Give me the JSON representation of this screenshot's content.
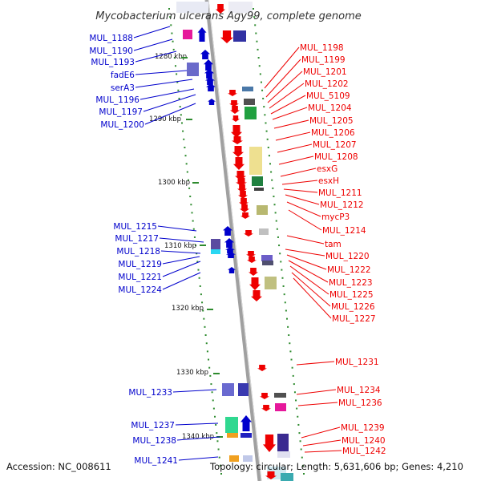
{
  "title": "Mycobacterium ulcerans Agy99, complete genome",
  "footer": {
    "accession": "Accession: NC_008611",
    "topology": "Topology: circular; Length: 5,631,606 bp; Genes: 4,210"
  },
  "colors": {
    "forward_strand": "#0000cc",
    "reverse_strand": "#ee0000",
    "backbone": "#a0a0a0",
    "tick": "#2e8b2e"
  },
  "kbp_ticks": [
    "1280 kbp",
    "1290 kbp",
    "1300 kbp",
    "1310 kbp",
    "1320 kbp",
    "1330 kbp",
    "1340 kbp"
  ],
  "left_genes": [
    "MUL_1188",
    "MUL_1190",
    "MUL_1193",
    "fadE6",
    "serA3",
    "MUL_1196",
    "MUL_1197",
    "MUL_1200",
    "MUL_1215",
    "MUL_1217",
    "MUL_1218",
    "MUL_1219",
    "MUL_1221",
    "MUL_1224",
    "MUL_1233",
    "MUL_1237",
    "MUL_1238",
    "MUL_1241"
  ],
  "right_genes": [
    "MUL_1198",
    "MUL_1199",
    "MUL_1201",
    "MUL_1202",
    "MUL_5109",
    "MUL_1204",
    "MUL_1205",
    "MUL_1206",
    "MUL_1207",
    "MUL_1208",
    "esxG",
    "esxH",
    "MUL_1211",
    "MUL_1212",
    "mycP3",
    "MUL_1214",
    "tam",
    "MUL_1220",
    "MUL_1222",
    "MUL_1223",
    "MUL_1225",
    "MUL_1226",
    "MUL_1227",
    "MUL_1231",
    "MUL_1234",
    "MUL_1236",
    "MUL_1239",
    "MUL_1240",
    "MUL_1242"
  ]
}
